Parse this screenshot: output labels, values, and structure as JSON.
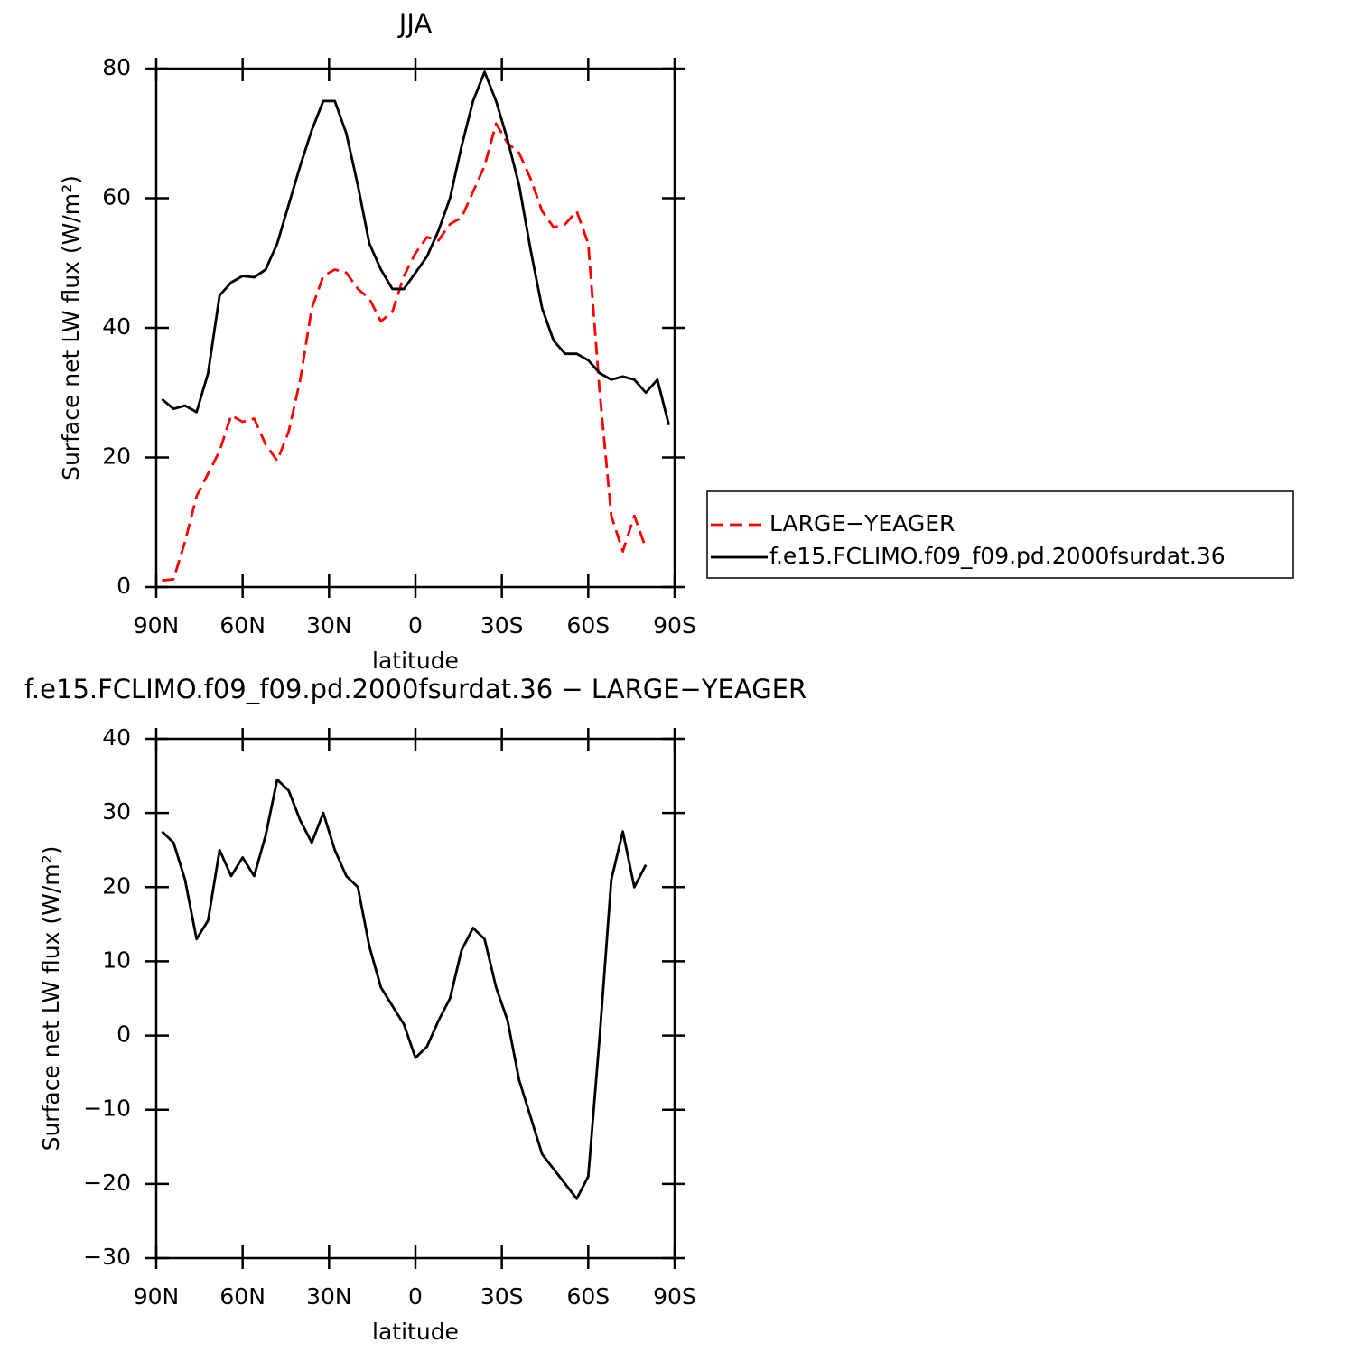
{
  "chart_data": [
    {
      "type": "line",
      "title": "JJA",
      "xlabel": "latitude",
      "ylabel": "Surface net LW flux (W/m²)",
      "x": [
        88,
        84,
        80,
        76,
        72,
        68,
        64,
        60,
        56,
        52,
        48,
        44,
        40,
        36,
        32,
        28,
        24,
        20,
        16,
        12,
        8,
        4,
        0,
        -4,
        -8,
        -12,
        -16,
        -20,
        -24,
        -28,
        -32,
        -36,
        -40,
        -44,
        -48,
        -52,
        -56,
        -60,
        -64,
        -68,
        -72,
        -76,
        -80,
        -84,
        -88
      ],
      "series": [
        {
          "name": "LARGE−YEAGER",
          "color": "#ff0000",
          "dashed": true,
          "values": [
            1,
            1.2,
            7,
            14,
            17.5,
            21,
            26.5,
            25.5,
            26,
            22,
            19.5,
            24,
            32,
            43,
            48,
            49,
            48.5,
            46,
            44.5,
            41,
            42.5,
            48,
            51.5,
            54,
            53.5,
            56,
            57,
            61,
            65,
            71.5,
            68.5,
            67,
            63,
            58,
            55.5,
            56,
            58,
            53,
            30,
            11,
            5.5,
            11,
            6,
            null,
            null
          ]
        },
        {
          "name": "f.e15.FCLIMO.f09_f09.pd.2000fsurdat.36",
          "color": "#000000",
          "dashed": false,
          "values": [
            29,
            27.5,
            28,
            27,
            33,
            45,
            47,
            48,
            47.8,
            49,
            53,
            59,
            65,
            70.5,
            75,
            75,
            70,
            62,
            53,
            49,
            46,
            46,
            48.5,
            51,
            55,
            60,
            68,
            75,
            79.5,
            75,
            69,
            62,
            52,
            43,
            38,
            36,
            36,
            35,
            33,
            32,
            32.5,
            32,
            30,
            32,
            25
          ]
        }
      ],
      "xlim": [
        90,
        -90
      ],
      "xticks": [
        {
          "value": 90,
          "label": "90N"
        },
        {
          "value": 60,
          "label": "60N"
        },
        {
          "value": 30,
          "label": "30N"
        },
        0,
        {
          "value": -30,
          "label": "30S"
        },
        {
          "value": -60,
          "label": "60S"
        },
        {
          "value": -90,
          "label": "90S"
        }
      ],
      "ylim": [
        0,
        80
      ],
      "yticks": [
        0,
        20,
        40,
        60,
        80
      ],
      "legend": "right"
    },
    {
      "type": "line",
      "title": "f.e15.FCLIMO.f09_f09.pd.2000fsurdat.36 − LARGE−YEAGER",
      "xlabel": "latitude",
      "ylabel": "Surface net LW flux (W/m²)",
      "x": [
        88,
        84,
        80,
        76,
        72,
        68,
        64,
        60,
        56,
        52,
        48,
        44,
        40,
        36,
        32,
        28,
        24,
        20,
        16,
        12,
        8,
        4,
        0,
        -4,
        -8,
        -12,
        -16,
        -20,
        -24,
        -28,
        -32,
        -36,
        -40,
        -44,
        -48,
        -52,
        -56,
        -60,
        -64,
        -68,
        -72,
        -76,
        -80
      ],
      "series": [
        {
          "color": "#000000",
          "dashed": false,
          "values": [
            27.5,
            26,
            21,
            13,
            15.5,
            25,
            21.5,
            24,
            21.5,
            27,
            34.5,
            33,
            29,
            26,
            30,
            25,
            21.5,
            20,
            12,
            6.5,
            4,
            1.5,
            -3,
            -1.5,
            2,
            5,
            11.5,
            14.5,
            13,
            6.5,
            2,
            -6,
            -11,
            -16,
            -18,
            -20,
            -22,
            -19,
            0,
            21,
            27.5,
            20,
            23
          ]
        }
      ],
      "xlim": [
        90,
        -90
      ],
      "xticks": [
        {
          "value": 90,
          "label": "90N"
        },
        {
          "value": 60,
          "label": "60N"
        },
        {
          "value": 30,
          "label": "30N"
        },
        0,
        {
          "value": -30,
          "label": "30S"
        },
        {
          "value": -60,
          "label": "60S"
        },
        {
          "value": -90,
          "label": "90S"
        }
      ],
      "ylim": [
        -30,
        40
      ],
      "yticks": [
        {
          "value": -30,
          "label": "−30"
        },
        {
          "value": -20,
          "label": "−20"
        },
        {
          "value": -10,
          "label": "−10"
        },
        0,
        10,
        20,
        30,
        40
      ]
    }
  ]
}
